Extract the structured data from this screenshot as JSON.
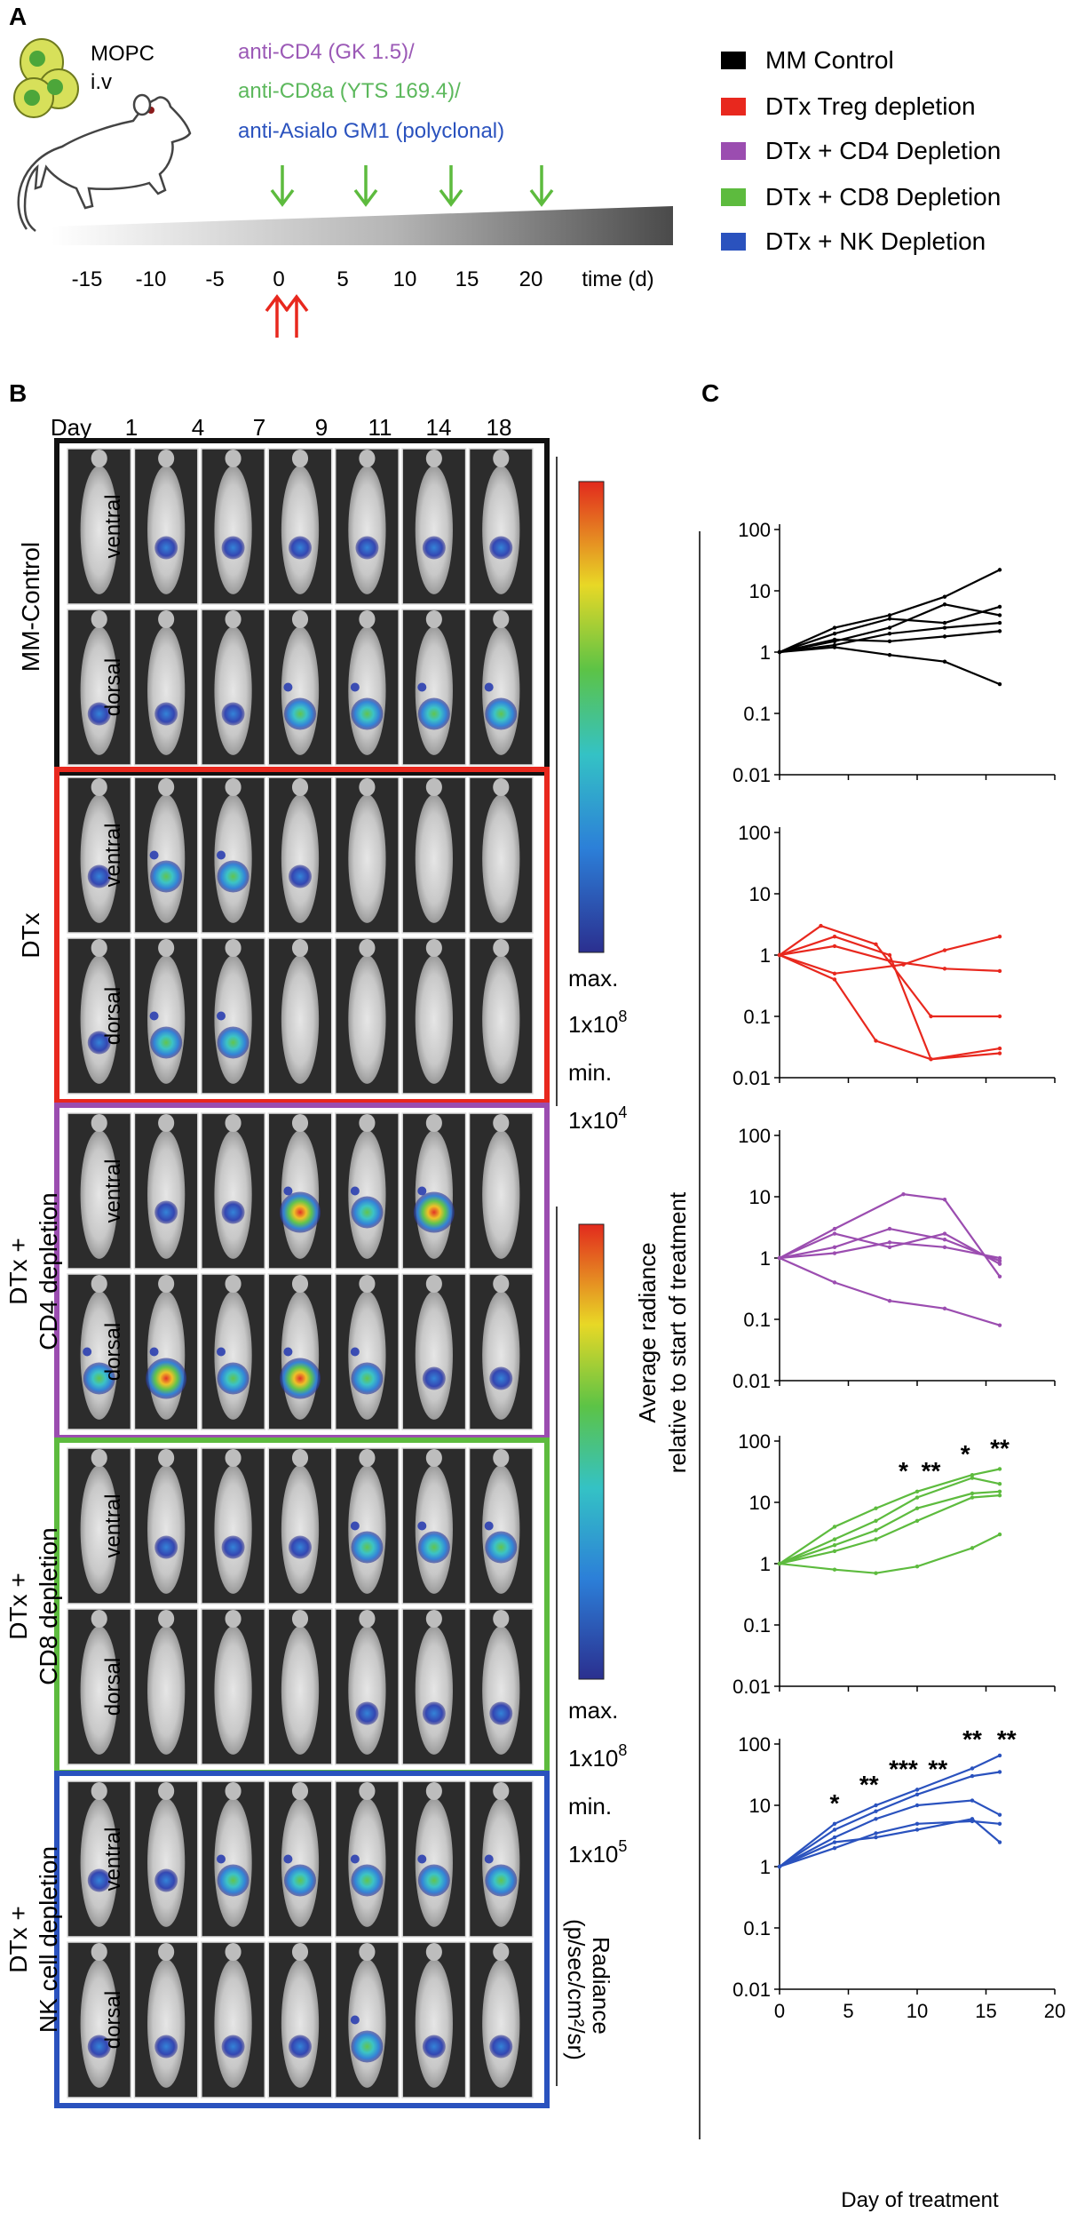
{
  "panel_a": {
    "label": "A",
    "cell_name": "MOPC",
    "route": "i.v",
    "antibodies": [
      {
        "text": "anti-CD4 (GK 1.5)/",
        "color": "#9b59b6"
      },
      {
        "text": "anti-CD8a (YTS 169.4)/",
        "color": "#5cb85c"
      },
      {
        "text": "anti-Asialo GM1 (polyclonal)",
        "color": "#2a52be"
      }
    ],
    "time_ticks": [
      "-15",
      "-10",
      "-5",
      "0",
      "5",
      "10",
      "15",
      "20"
    ],
    "time_label": "time (d)",
    "legend": [
      {
        "label": "MM Control",
        "color": "#000000"
      },
      {
        "label": "DTx Treg depletion",
        "color": "#e8281e"
      },
      {
        "label": "DTx + CD4 Depletion",
        "color": "#9b4db0"
      },
      {
        "label": "DTx + CD8 Depletion",
        "color": "#5dbb3e"
      },
      {
        "label": "DTx + NK Depletion",
        "color": "#2a52be"
      }
    ]
  },
  "panel_b": {
    "label": "B",
    "day_header": "Day",
    "days": [
      "1",
      "4",
      "7",
      "9",
      "11",
      "14",
      "18"
    ],
    "views": [
      "ventral",
      "dorsal"
    ],
    "groups": [
      {
        "name": "MM-Control",
        "name_lines": [
          "MM-Control"
        ],
        "border": "#111111"
      },
      {
        "name": "DTx",
        "name_lines": [
          "DTx"
        ],
        "border": "#e8281e"
      },
      {
        "name": "DTx + CD4 depletion",
        "name_lines": [
          "DTx +",
          "CD4 depletion"
        ],
        "border": "#9b4db0"
      },
      {
        "name": "DTx + CD8 depletion",
        "name_lines": [
          "DTx +",
          "CD8 depletion"
        ],
        "border": "#5dbb3e"
      },
      {
        "name": "DTx + NK cell depletion",
        "name_lines": [
          "DTx +",
          "NK cell depletion"
        ],
        "border": "#2a52be"
      }
    ],
    "scale_top": {
      "max_label": "max.",
      "max_value": "1x10",
      "max_exp": "8",
      "min_label": "min.",
      "min_value": "1x10",
      "min_exp": "4"
    },
    "scale_bottom": {
      "max_label": "max.",
      "max_value": "1x10",
      "max_exp": "8",
      "min_label": "min.",
      "min_value": "1x10",
      "min_exp": "5"
    },
    "radiance_label": "Radiance",
    "radiance_units": "(p/sec/cm²/sr)"
  },
  "panel_c": {
    "label": "C",
    "y_label_line1": "Average radiance",
    "y_label_line2": "relative to  start of treatment",
    "x_label": "Day of treatment"
  },
  "chart_data": [
    {
      "type": "line",
      "group": "MM Control",
      "color": "#000000",
      "y_scale": "log",
      "ylim": [
        0.01,
        100
      ],
      "xlim": [
        0,
        20
      ],
      "y_ticks": [
        "0.01",
        "0.1",
        "1",
        "10",
        "100"
      ],
      "series": [
        {
          "x": [
            0,
            4,
            8,
            12,
            16
          ],
          "y": [
            1,
            2.5,
            4,
            8,
            22
          ]
        },
        {
          "x": [
            0,
            4,
            8,
            12,
            16
          ],
          "y": [
            1,
            1.3,
            2,
            2.5,
            3
          ]
        },
        {
          "x": [
            0,
            4,
            8,
            12,
            16
          ],
          "y": [
            1,
            1.5,
            2.5,
            6,
            4
          ]
        },
        {
          "x": [
            0,
            4,
            8,
            12,
            16
          ],
          "y": [
            1,
            1.2,
            0.9,
            0.7,
            0.3
          ]
        },
        {
          "x": [
            0,
            4,
            8,
            12,
            16
          ],
          "y": [
            1,
            2,
            3.5,
            3,
            5.5
          ]
        },
        {
          "x": [
            0,
            4,
            8,
            12,
            16
          ],
          "y": [
            1,
            1.6,
            1.5,
            1.8,
            2.2
          ]
        }
      ],
      "annotations": []
    },
    {
      "type": "line",
      "group": "DTx Treg depletion",
      "color": "#e8281e",
      "y_scale": "log",
      "ylim": [
        0.01,
        100
      ],
      "xlim": [
        0,
        20
      ],
      "y_ticks": [
        "0.01",
        "0.1",
        "1",
        "10",
        "100"
      ],
      "series": [
        {
          "x": [
            0,
            3,
            7,
            11,
            16
          ],
          "y": [
            1,
            3,
            1.5,
            0.1,
            0.1
          ]
        },
        {
          "x": [
            0,
            4,
            7,
            11,
            16
          ],
          "y": [
            1,
            0.4,
            0.04,
            0.02,
            0.025
          ]
        },
        {
          "x": [
            0,
            4,
            8,
            11,
            16
          ],
          "y": [
            1,
            2,
            1,
            0.02,
            0.03
          ]
        },
        {
          "x": [
            0,
            4,
            9,
            12,
            16
          ],
          "y": [
            1,
            0.5,
            0.7,
            1.2,
            2
          ]
        },
        {
          "x": [
            0,
            4,
            8,
            12,
            16
          ],
          "y": [
            1,
            1.4,
            0.8,
            0.6,
            0.55
          ]
        }
      ],
      "annotations": []
    },
    {
      "type": "line",
      "group": "DTx + CD4 Depletion",
      "color": "#9b4db0",
      "y_scale": "log",
      "ylim": [
        0.01,
        100
      ],
      "xlim": [
        0,
        20
      ],
      "y_ticks": [
        "0.01",
        "0.1",
        "1",
        "10",
        "100"
      ],
      "series": [
        {
          "x": [
            0,
            4,
            9,
            12,
            16
          ],
          "y": [
            1,
            3,
            11,
            9,
            0.5
          ]
        },
        {
          "x": [
            0,
            4,
            8,
            12,
            16
          ],
          "y": [
            1,
            0.4,
            0.2,
            0.15,
            0.08
          ]
        },
        {
          "x": [
            0,
            4,
            8,
            12,
            16
          ],
          "y": [
            1,
            1.5,
            3,
            2,
            0.9
          ]
        },
        {
          "x": [
            0,
            4,
            8,
            12,
            16
          ],
          "y": [
            1,
            2.5,
            1.5,
            2.5,
            0.8
          ]
        },
        {
          "x": [
            0,
            4,
            8,
            12,
            16
          ],
          "y": [
            1,
            1.2,
            1.8,
            1.5,
            1
          ]
        }
      ],
      "annotations": []
    },
    {
      "type": "line",
      "group": "DTx + CD8 Depletion",
      "color": "#5dbb3e",
      "y_scale": "log",
      "ylim": [
        0.01,
        100
      ],
      "xlim": [
        0,
        20
      ],
      "y_ticks": [
        "0.01",
        "0.1",
        "1",
        "10",
        "100"
      ],
      "series": [
        {
          "x": [
            0,
            4,
            7,
            10,
            14,
            16
          ],
          "y": [
            1,
            4,
            8,
            15,
            28,
            35
          ]
        },
        {
          "x": [
            0,
            4,
            7,
            10,
            14,
            16
          ],
          "y": [
            1,
            2.5,
            5,
            12,
            25,
            20
          ]
        },
        {
          "x": [
            0,
            4,
            7,
            10,
            14,
            16
          ],
          "y": [
            1,
            1.6,
            2.5,
            5,
            12,
            13
          ]
        },
        {
          "x": [
            0,
            4,
            7,
            10,
            14,
            16
          ],
          "y": [
            1,
            0.8,
            0.7,
            0.9,
            1.8,
            3
          ]
        },
        {
          "x": [
            0,
            4,
            7,
            10,
            14,
            16
          ],
          "y": [
            1,
            2,
            3.5,
            8,
            14,
            15
          ]
        }
      ],
      "annotations": [
        {
          "x": 9,
          "text": "*"
        },
        {
          "x": 11,
          "text": "**"
        },
        {
          "x": 13.5,
          "text": "*"
        },
        {
          "x": 16,
          "text": "**"
        }
      ]
    },
    {
      "type": "line",
      "group": "DTx + NK Depletion",
      "color": "#2a52be",
      "y_scale": "log",
      "ylim": [
        0.01,
        100
      ],
      "xlim": [
        0,
        20
      ],
      "y_ticks": [
        "0.01",
        "0.1",
        "1",
        "10",
        "100"
      ],
      "x_ticks": [
        "0",
        "5",
        "10",
        "15",
        "20"
      ],
      "series": [
        {
          "x": [
            0,
            4,
            7,
            10,
            14,
            16
          ],
          "y": [
            1,
            5,
            10,
            18,
            40,
            65
          ]
        },
        {
          "x": [
            0,
            4,
            7,
            10,
            14,
            16
          ],
          "y": [
            1,
            4,
            8,
            15,
            30,
            35
          ]
        },
        {
          "x": [
            0,
            4,
            7,
            10,
            14,
            16
          ],
          "y": [
            1,
            3,
            6,
            10,
            12,
            7
          ]
        },
        {
          "x": [
            0,
            4,
            7,
            10,
            14,
            16
          ],
          "y": [
            1,
            2.5,
            3,
            4,
            6,
            2.5
          ]
        },
        {
          "x": [
            0,
            4,
            7,
            10,
            14,
            16
          ],
          "y": [
            1,
            2,
            3.5,
            5,
            5.5,
            5
          ]
        }
      ],
      "annotations": [
        {
          "x": 4,
          "text": "*"
        },
        {
          "x": 6.5,
          "text": "**"
        },
        {
          "x": 9,
          "text": "***"
        },
        {
          "x": 11.5,
          "text": "**"
        },
        {
          "x": 14,
          "text": "**"
        },
        {
          "x": 16.5,
          "text": "**"
        }
      ]
    }
  ]
}
